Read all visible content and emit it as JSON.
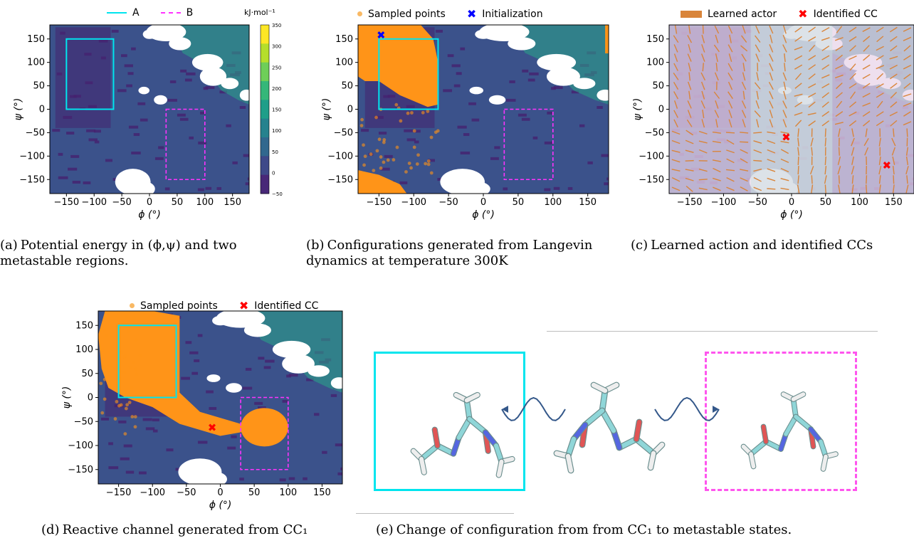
{
  "colors": {
    "regionA": "#00e5ee",
    "regionB": "#ff33ff",
    "sampled": "#ff9418",
    "init": "#0000ff",
    "cc": "#ff0000",
    "actor": "#d9853b",
    "background": "#3b528b",
    "deep": "#46226f",
    "green": "#2aa58a",
    "white": "#ffffff"
  },
  "axes": {
    "xlabel": "ϕ (°)",
    "ylabel": "ψ (°)",
    "xticks": [
      "−150",
      "−100",
      "−50",
      "0",
      "50",
      "100",
      "150"
    ],
    "yticks": [
      "150",
      "100",
      "50",
      "0",
      "−50",
      "−100",
      "−150"
    ]
  },
  "panel_a": {
    "legend": [
      {
        "label": "A",
        "icon": "line-solid-cyan"
      },
      {
        "label": "B",
        "icon": "line-dashed-magenta"
      }
    ],
    "colorbar_title": "kJ·mol⁻¹",
    "colorbar_ticks": [
      "350",
      "300",
      "250",
      "200",
      "150",
      "100",
      "50",
      "0",
      "−50"
    ],
    "caption_tag": "(a)",
    "caption_text": "Potential energy in (ϕ,ψ) and two metastable regions."
  },
  "panel_b": {
    "legend": [
      {
        "label": "Sampled points",
        "icon": "orange-dot"
      },
      {
        "label": "Initialization",
        "icon": "blue-x"
      }
    ],
    "caption_tag": "(b)",
    "caption_text": "Configurations generated from Langevin dynamics at temperature 300K"
  },
  "panel_c": {
    "legend": [
      {
        "label": "Learned actor",
        "icon": "orange-rect"
      },
      {
        "label": "Identified CC",
        "icon": "red-x"
      }
    ],
    "caption_tag": "(c)",
    "caption_text": "Learned action and identified CCs"
  },
  "panel_d": {
    "legend": [
      {
        "label": "Sampled points",
        "icon": "orange-dot"
      },
      {
        "label": "Identified CC",
        "icon": "red-x"
      }
    ],
    "caption_tag": "(d)",
    "caption_text": "Reactive channel generated from CC₁"
  },
  "panel_e": {
    "caption_tag": "(e)",
    "caption_text": "Change of configuration from from CC₁ to metastable states."
  },
  "chart_data": [
    {
      "type": "heatmap",
      "panel": "a",
      "xlabel": "ϕ (°)",
      "ylabel": "ψ (°)",
      "xlim": [
        -180,
        180
      ],
      "ylim": [
        -180,
        180
      ],
      "colorbar_range": [
        -50,
        350
      ],
      "regions": [
        {
          "name": "A",
          "phi": [
            -150,
            -65
          ],
          "psi": [
            0,
            150
          ]
        },
        {
          "name": "B",
          "phi": [
            30,
            100
          ],
          "psi": [
            -150,
            0
          ]
        }
      ]
    },
    {
      "type": "scatter",
      "panel": "b",
      "xlabel": "ϕ (°)",
      "ylabel": "ψ (°)",
      "xlim": [
        -180,
        180
      ],
      "ylim": [
        -180,
        180
      ],
      "initialization": {
        "phi": -147,
        "psi": 158
      }
    },
    {
      "type": "scatter",
      "panel": "c",
      "xlabel": "ϕ (°)",
      "xlim": [
        -180,
        180
      ],
      "ylim": [
        -180,
        180
      ],
      "identified_cc": [
        {
          "phi": -8,
          "psi": -60
        },
        {
          "phi": 140,
          "psi": -120
        }
      ]
    },
    {
      "type": "scatter",
      "panel": "d",
      "xlabel": "ϕ (°)",
      "ylabel": "ψ (°)",
      "xlim": [
        -180,
        180
      ],
      "ylim": [
        -180,
        180
      ],
      "identified_cc": [
        {
          "phi": -12,
          "psi": -63
        }
      ]
    }
  ]
}
